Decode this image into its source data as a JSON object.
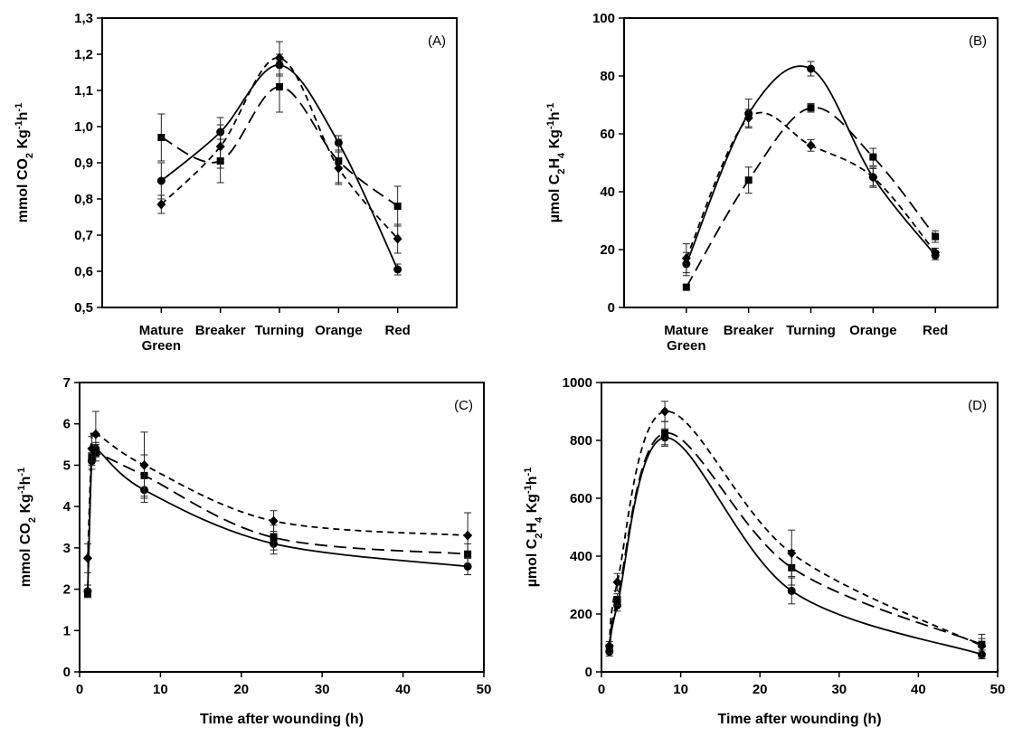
{
  "chart_data": [
    {
      "type": "line",
      "panel_label": "(A)",
      "ylabel": [
        "mmol CO",
        "2",
        " Kg",
        "-1",
        "h",
        "-1"
      ],
      "xlabel": "",
      "x_type": "category",
      "categories": [
        [
          "Mature",
          "Green"
        ],
        [
          "Breaker"
        ],
        [
          "Turning"
        ],
        [
          "Orange"
        ],
        [
          "Red"
        ]
      ],
      "ylim": [
        0.5,
        1.3
      ],
      "yticks": [
        0.5,
        0.6,
        0.7,
        0.8,
        0.9,
        1.0,
        1.1,
        1.2,
        1.3
      ],
      "ytick_labels": [
        "0,5",
        "0,6",
        "0,7",
        "0,8",
        "0,9",
        "1,0",
        "1,1",
        "1,2",
        "1,3"
      ],
      "series": [
        {
          "marker": "circle",
          "line": "solid",
          "values": [
            0.85,
            0.985,
            1.17,
            0.955,
            0.605
          ],
          "errors": [
            0.05,
            0.04,
            0.03,
            0.02,
            0.015
          ]
        },
        {
          "marker": "square",
          "line": "long-dash",
          "values": [
            0.97,
            0.905,
            1.11,
            0.905,
            0.78
          ],
          "errors": [
            0.065,
            0.06,
            0.07,
            0.06,
            0.055
          ]
        },
        {
          "marker": "diamond",
          "line": "short-dash",
          "values": [
            0.785,
            0.945,
            1.19,
            0.885,
            0.69
          ],
          "errors": [
            0.025,
            0.06,
            0.045,
            0.045,
            0.04
          ]
        }
      ]
    },
    {
      "type": "line",
      "panel_label": "(B)",
      "ylabel": [
        "µmol C",
        "2",
        "H",
        "4",
        " Kg",
        "-1",
        "h",
        "-1"
      ],
      "xlabel": "",
      "x_type": "category",
      "categories": [
        [
          "Mature",
          "Green"
        ],
        [
          "Breaker"
        ],
        [
          "Turning"
        ],
        [
          "Orange"
        ],
        [
          "Red"
        ]
      ],
      "ylim": [
        0,
        100
      ],
      "yticks": [
        0,
        20,
        40,
        60,
        80,
        100
      ],
      "ytick_labels": [
        "0",
        "20",
        "40",
        "60",
        "80",
        "100"
      ],
      "series": [
        {
          "marker": "circle",
          "line": "solid",
          "values": [
            15,
            67,
            82.5,
            45,
            18
          ],
          "errors": [
            4,
            5,
            2.5,
            3.5,
            1.5
          ]
        },
        {
          "marker": "square",
          "line": "long-dash",
          "values": [
            7,
            44,
            69,
            52,
            24.5
          ],
          "errors": [
            1,
            4.5,
            1.5,
            3,
            2
          ]
        },
        {
          "marker": "diamond",
          "line": "short-dash",
          "values": [
            17,
            65.5,
            56,
            45,
            19
          ],
          "errors": [
            5,
            3,
            2,
            3,
            1.5
          ]
        }
      ]
    },
    {
      "type": "line",
      "panel_label": "(C)",
      "ylabel": [
        "mmol CO",
        "2",
        " Kg",
        "-1",
        "h",
        "-1"
      ],
      "xlabel": "Time after wounding (h)",
      "x_type": "numeric",
      "x": [
        1,
        1.5,
        2,
        8,
        24,
        48
      ],
      "xlim": [
        0,
        50
      ],
      "xticks": [
        0,
        10,
        20,
        30,
        40,
        50
      ],
      "ylim": [
        0,
        7
      ],
      "yticks": [
        0,
        1,
        2,
        3,
        4,
        5,
        6,
        7
      ],
      "ytick_labels": [
        "0",
        "1",
        "2",
        "3",
        "4",
        "5",
        "6",
        "7"
      ],
      "series": [
        {
          "marker": "circle",
          "line": "solid",
          "values": [
            1.95,
            5.1,
            5.4,
            4.4,
            3.1,
            2.55
          ],
          "errors": [
            0.15,
            0.2,
            0.15,
            0.3,
            0.25,
            0.2
          ]
        },
        {
          "marker": "square",
          "line": "long-dash",
          "values": [
            1.9,
            5.2,
            5.3,
            4.75,
            3.25,
            2.85
          ],
          "errors": [
            0.1,
            0.2,
            0.2,
            0.5,
            0.3,
            0.25
          ]
        },
        {
          "marker": "diamond",
          "line": "short-dash",
          "values": [
            2.75,
            5.4,
            5.75,
            5.0,
            3.65,
            3.3
          ],
          "errors": [
            0.35,
            0.3,
            0.55,
            0.8,
            0.25,
            0.55
          ]
        }
      ]
    },
    {
      "type": "line",
      "panel_label": "(D)",
      "ylabel": [
        "µmol C",
        "2",
        "H",
        "4",
        " Kg",
        "-1",
        "h",
        "-1"
      ],
      "xlabel": "Time after wounding (h)",
      "x_type": "numeric",
      "x": [
        1,
        2,
        8,
        24,
        48
      ],
      "xlim": [
        0,
        50
      ],
      "xticks": [
        0,
        10,
        20,
        30,
        40,
        50
      ],
      "ylim": [
        0,
        1000
      ],
      "yticks": [
        0,
        200,
        400,
        600,
        800,
        1000
      ],
      "ytick_labels": [
        "0",
        "200",
        "400",
        "600",
        "800",
        "1000"
      ],
      "series": [
        {
          "marker": "circle",
          "line": "solid",
          "values": [
            70,
            230,
            810,
            280,
            60
          ],
          "errors": [
            15,
            20,
            30,
            45,
            15
          ]
        },
        {
          "marker": "square",
          "line": "long-dash",
          "values": [
            80,
            250,
            825,
            360,
            95
          ],
          "errors": [
            15,
            20,
            40,
            60,
            20
          ]
        },
        {
          "marker": "diamond",
          "line": "short-dash",
          "values": [
            90,
            310,
            900,
            410,
            90
          ],
          "errors": [
            15,
            30,
            35,
            80,
            40
          ]
        }
      ]
    }
  ]
}
